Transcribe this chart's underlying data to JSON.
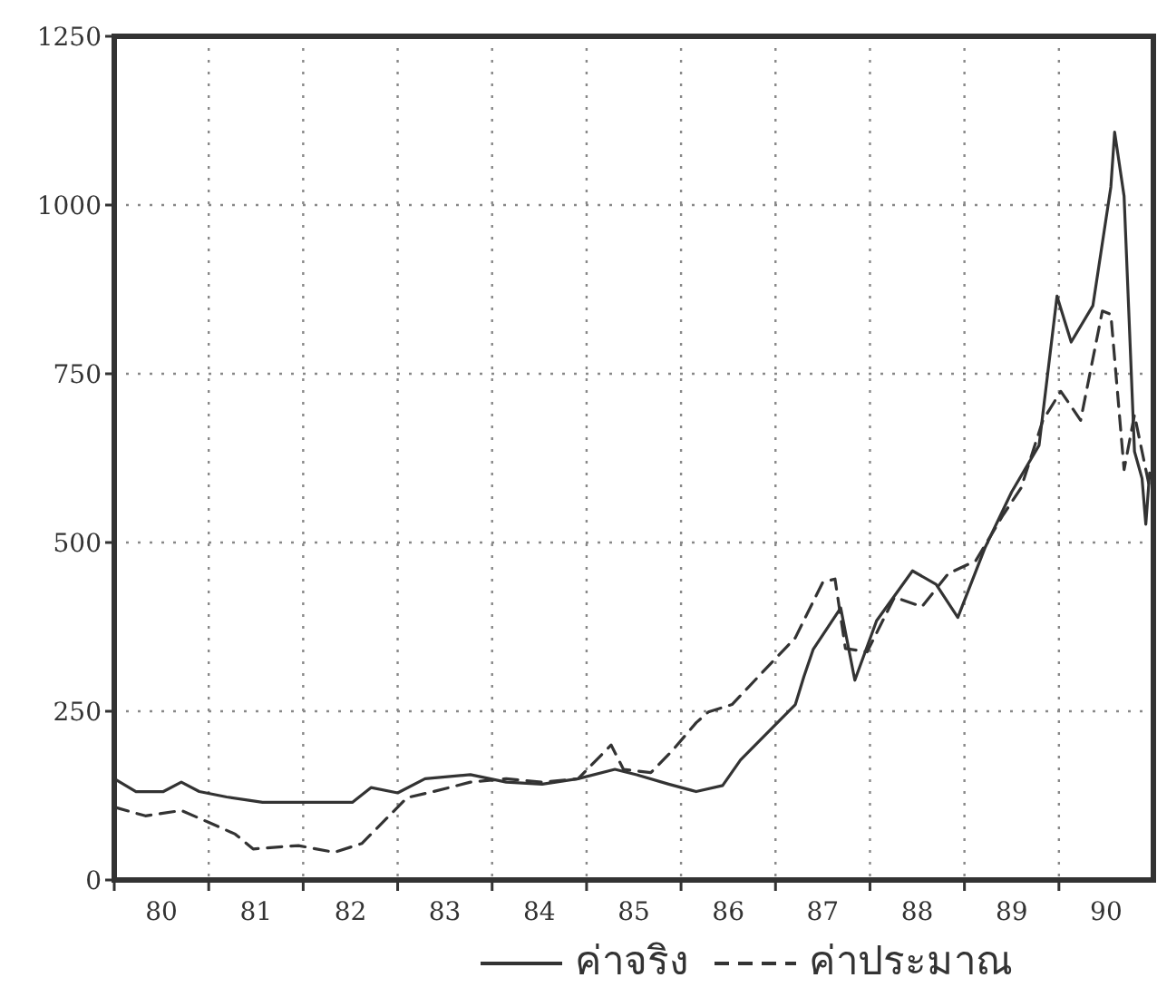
{
  "chart_data": {
    "type": "line",
    "xlim": [
      79.5,
      90.5
    ],
    "ylim": [
      0,
      1250
    ],
    "yticks": [
      0,
      250,
      500,
      750,
      1000,
      1250
    ],
    "xticks": [
      {
        "value": 79.5,
        "label": null
      },
      80,
      {
        "value": 80.5,
        "label": null
      },
      81,
      {
        "value": 81.5,
        "label": null
      },
      82,
      {
        "value": 82.5,
        "label": null
      },
      83,
      {
        "value": 83.5,
        "label": null
      },
      84,
      {
        "value": 84.5,
        "label": null
      },
      85,
      {
        "value": 85.5,
        "label": null
      },
      86,
      {
        "value": 86.5,
        "label": null
      },
      87,
      {
        "value": 87.5,
        "label": null
      },
      88,
      {
        "value": 88.5,
        "label": null
      },
      89,
      {
        "value": 89.5,
        "label": null
      },
      90
    ],
    "grid": true,
    "legend": "bottom right",
    "series": [
      {
        "name": "ค่าจริง",
        "color": "#333333",
        "line_style": "solid",
        "x": [
          79.5,
          79.73,
          80.02,
          80.21,
          80.4,
          80.69,
          81.07,
          82.02,
          82.22,
          82.5,
          82.79,
          83.27,
          83.65,
          84.03,
          84.41,
          84.8,
          85.03,
          85.37,
          85.66,
          85.94,
          86.13,
          86.42,
          86.71,
          86.8,
          86.9,
          87.19,
          87.34,
          87.57,
          87.95,
          88.2,
          88.43,
          88.72,
          89.0,
          89.29,
          89.48,
          89.63,
          89.86,
          90.05,
          90.09,
          90.19,
          90.3,
          90.38,
          90.42,
          90.46
        ],
        "values": [
          150,
          131,
          131,
          145,
          131,
          123,
          115,
          115,
          137,
          129,
          150,
          156,
          145,
          142,
          150,
          164,
          156,
          142,
          131,
          140,
          178,
          219,
          260,
          301,
          342,
          403,
          296,
          384,
          458,
          438,
          389,
          493,
          575,
          644,
          865,
          797,
          851,
          1027,
          1108,
          1013,
          635,
          595,
          527,
          603
        ]
      },
      {
        "name": "ค่าประมาณ",
        "color": "#333333",
        "line_style": "dashed",
        "x": [
          79.5,
          79.83,
          80.21,
          80.49,
          80.78,
          80.97,
          81.45,
          81.83,
          82.12,
          82.41,
          82.6,
          82.88,
          83.27,
          83.65,
          84.03,
          84.41,
          84.76,
          84.89,
          85.18,
          85.41,
          85.66,
          85.79,
          86.04,
          86.33,
          86.71,
          87.0,
          87.13,
          87.24,
          87.47,
          87.76,
          88.05,
          88.33,
          88.62,
          88.91,
          89.1,
          89.33,
          89.52,
          89.73,
          89.96,
          90.05,
          90.19,
          90.3,
          90.46
        ],
        "values": [
          108,
          95,
          103,
          86,
          68,
          46,
          51,
          41,
          54,
          95,
          122,
          131,
          145,
          150,
          145,
          150,
          200,
          164,
          159,
          192,
          233,
          249,
          260,
          303,
          359,
          441,
          446,
          343,
          338,
          419,
          405,
          454,
          473,
          541,
          581,
          681,
          724,
          681,
          843,
          838,
          608,
          689,
          581
        ]
      }
    ]
  }
}
